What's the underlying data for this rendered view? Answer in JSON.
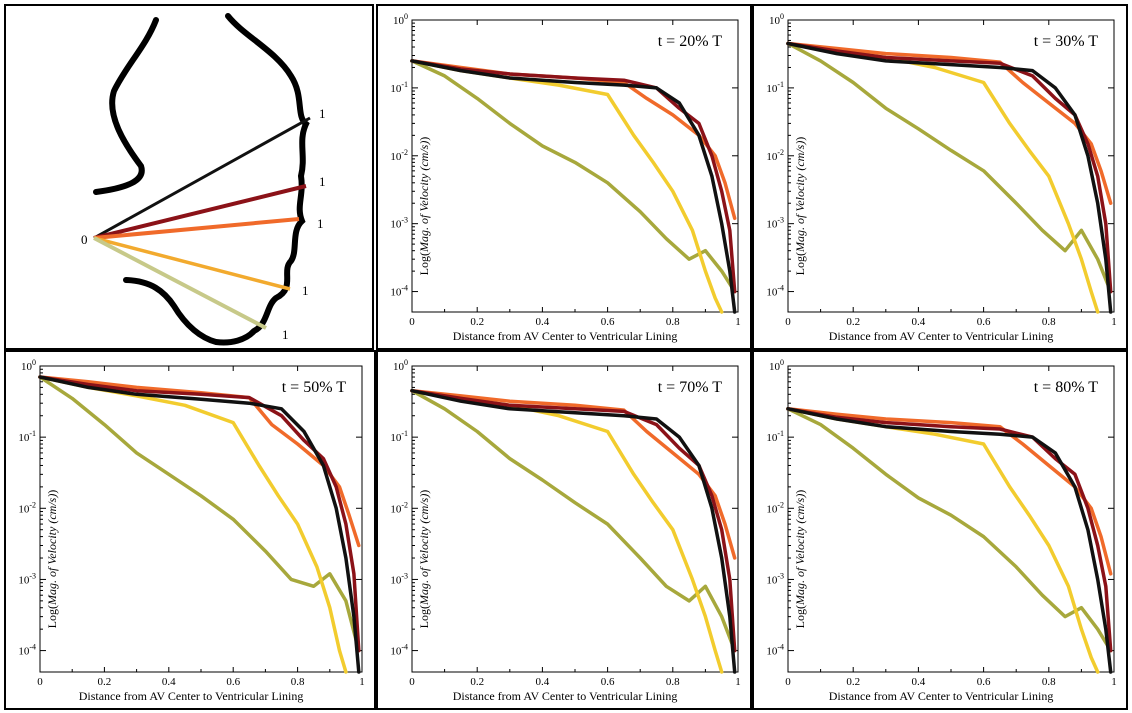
{
  "colors": {
    "black": "#111111",
    "darkred": "#8b1218",
    "orange": "#f06a2a",
    "gold": "#f2cc2e",
    "olive": "#a7a83c",
    "olive_light": "#c7c989"
  },
  "diagram": {
    "origin_label": "0",
    "end_labels": [
      "1",
      "1",
      "1",
      "1",
      "1"
    ]
  },
  "chart_data": [
    {
      "type": "line",
      "title": "t = 20% T",
      "xlabel": "Distance from AV Center to Ventricular Lining",
      "ylabel_prefix": "Log(",
      "ylabel_italic": "Mag. of Velocity (cm/s)",
      "ylabel_suffix": ")",
      "yscale": "log",
      "xlim": [
        0,
        1
      ],
      "ylim": [
        5e-05,
        1
      ],
      "x_ticks": [
        "0",
        "0.2",
        "0.4",
        "0.6",
        "0.8",
        "1"
      ],
      "y_ticks": [
        "-4",
        "-3",
        "-2",
        "-1",
        "0"
      ],
      "y_tick_base": "10",
      "series": [
        {
          "name": "black",
          "color": "#111111",
          "x": [
            0,
            0.15,
            0.3,
            0.5,
            0.65,
            0.75,
            0.82,
            0.88,
            0.92,
            0.95,
            0.975,
            0.99
          ],
          "y": [
            0.25,
            0.18,
            0.14,
            0.12,
            0.11,
            0.1,
            0.06,
            0.02,
            0.005,
            0.001,
            0.0002,
            5e-05
          ]
        },
        {
          "name": "darkred",
          "color": "#8b1218",
          "x": [
            0,
            0.15,
            0.3,
            0.5,
            0.65,
            0.75,
            0.82,
            0.88,
            0.92,
            0.95,
            0.975,
            0.99
          ],
          "y": [
            0.25,
            0.19,
            0.16,
            0.14,
            0.13,
            0.1,
            0.05,
            0.03,
            0.01,
            0.003,
            0.0008,
            0.0001
          ]
        },
        {
          "name": "orange",
          "color": "#f06a2a",
          "x": [
            0,
            0.15,
            0.3,
            0.5,
            0.65,
            0.72,
            0.8,
            0.88,
            0.93,
            0.96,
            0.99
          ],
          "y": [
            0.25,
            0.2,
            0.16,
            0.14,
            0.12,
            0.07,
            0.04,
            0.02,
            0.01,
            0.004,
            0.0012
          ]
        },
        {
          "name": "gold",
          "color": "#f2cc2e",
          "x": [
            0,
            0.15,
            0.3,
            0.45,
            0.6,
            0.68,
            0.74,
            0.8,
            0.86,
            0.9,
            0.93,
            0.95
          ],
          "y": [
            0.25,
            0.18,
            0.14,
            0.11,
            0.08,
            0.02,
            0.008,
            0.003,
            0.0008,
            0.0002,
            8e-05,
            5e-05
          ]
        },
        {
          "name": "olive",
          "color": "#a7a83c",
          "x": [
            0,
            0.1,
            0.2,
            0.3,
            0.4,
            0.5,
            0.6,
            0.7,
            0.78,
            0.85,
            0.9,
            0.95,
            0.99
          ],
          "y": [
            0.25,
            0.15,
            0.07,
            0.03,
            0.014,
            0.008,
            0.004,
            0.0015,
            0.0006,
            0.0003,
            0.0004,
            0.0002,
            0.0001
          ]
        }
      ]
    },
    {
      "type": "line",
      "title": "t = 30% T",
      "xlabel": "Distance from AV Center to Ventricular Lining",
      "ylabel_prefix": "Log(",
      "ylabel_italic": "Mag. of Velocity (cm/s)",
      "ylabel_suffix": ")",
      "yscale": "log",
      "xlim": [
        0,
        1
      ],
      "ylim": [
        5e-05,
        1
      ],
      "x_ticks": [
        "0",
        "0.2",
        "0.4",
        "0.6",
        "0.8",
        "1"
      ],
      "y_ticks": [
        "-4",
        "-3",
        "-2",
        "-1",
        "0"
      ],
      "y_tick_base": "10",
      "series": [
        {
          "name": "black",
          "color": "#111111",
          "x": [
            0,
            0.15,
            0.3,
            0.5,
            0.65,
            0.75,
            0.82,
            0.88,
            0.92,
            0.95,
            0.975,
            0.99
          ],
          "y": [
            0.45,
            0.32,
            0.25,
            0.22,
            0.2,
            0.18,
            0.1,
            0.04,
            0.01,
            0.002,
            0.0003,
            5e-05
          ]
        },
        {
          "name": "darkred",
          "color": "#8b1218",
          "x": [
            0,
            0.15,
            0.3,
            0.5,
            0.65,
            0.75,
            0.82,
            0.88,
            0.92,
            0.95,
            0.975,
            0.99
          ],
          "y": [
            0.45,
            0.35,
            0.28,
            0.25,
            0.23,
            0.15,
            0.07,
            0.04,
            0.015,
            0.005,
            0.001,
            0.0001
          ]
        },
        {
          "name": "orange",
          "color": "#f06a2a",
          "x": [
            0,
            0.15,
            0.3,
            0.5,
            0.65,
            0.72,
            0.8,
            0.88,
            0.93,
            0.96,
            0.99
          ],
          "y": [
            0.45,
            0.38,
            0.32,
            0.28,
            0.24,
            0.12,
            0.06,
            0.03,
            0.015,
            0.006,
            0.002
          ]
        },
        {
          "name": "gold",
          "color": "#f2cc2e",
          "x": [
            0,
            0.15,
            0.3,
            0.45,
            0.6,
            0.68,
            0.74,
            0.8,
            0.86,
            0.9,
            0.93,
            0.95
          ],
          "y": [
            0.45,
            0.35,
            0.28,
            0.2,
            0.12,
            0.03,
            0.012,
            0.005,
            0.001,
            0.0003,
            0.0001,
            5e-05
          ]
        },
        {
          "name": "olive",
          "color": "#a7a83c",
          "x": [
            0,
            0.1,
            0.2,
            0.3,
            0.4,
            0.5,
            0.6,
            0.7,
            0.78,
            0.85,
            0.9,
            0.95,
            0.99
          ],
          "y": [
            0.45,
            0.25,
            0.12,
            0.05,
            0.025,
            0.012,
            0.006,
            0.002,
            0.0008,
            0.0004,
            0.0008,
            0.0003,
            0.0001
          ]
        }
      ]
    },
    {
      "type": "line",
      "title": "t = 50% T",
      "xlabel": "Distance from AV Center to Ventricular Lining",
      "ylabel_prefix": "Log(",
      "ylabel_italic": "Mag. of Velocity (cm/s)",
      "ylabel_suffix": ")",
      "yscale": "log",
      "xlim": [
        0,
        1
      ],
      "ylim": [
        5e-05,
        1
      ],
      "x_ticks": [
        "0",
        "0.2",
        "0.4",
        "0.6",
        "0.8",
        "1"
      ],
      "y_ticks": [
        "-4",
        "-3",
        "-2",
        "-1",
        "0"
      ],
      "y_tick_base": "10",
      "series": [
        {
          "name": "black",
          "color": "#111111",
          "x": [
            0,
            0.15,
            0.3,
            0.5,
            0.65,
            0.75,
            0.82,
            0.88,
            0.92,
            0.95,
            0.975,
            0.99
          ],
          "y": [
            0.7,
            0.5,
            0.4,
            0.34,
            0.3,
            0.25,
            0.12,
            0.04,
            0.01,
            0.002,
            0.0003,
            5e-05
          ]
        },
        {
          "name": "darkred",
          "color": "#8b1218",
          "x": [
            0,
            0.15,
            0.3,
            0.5,
            0.65,
            0.75,
            0.82,
            0.88,
            0.92,
            0.95,
            0.975,
            0.99
          ],
          "y": [
            0.7,
            0.55,
            0.45,
            0.4,
            0.36,
            0.2,
            0.09,
            0.05,
            0.02,
            0.006,
            0.0012,
            0.0001
          ]
        },
        {
          "name": "orange",
          "color": "#f06a2a",
          "x": [
            0,
            0.15,
            0.3,
            0.5,
            0.65,
            0.72,
            0.8,
            0.88,
            0.93,
            0.96,
            0.99
          ],
          "y": [
            0.7,
            0.6,
            0.5,
            0.42,
            0.36,
            0.15,
            0.08,
            0.04,
            0.02,
            0.008,
            0.003
          ]
        },
        {
          "name": "gold",
          "color": "#f2cc2e",
          "x": [
            0,
            0.15,
            0.3,
            0.45,
            0.6,
            0.68,
            0.74,
            0.8,
            0.86,
            0.9,
            0.93,
            0.95
          ],
          "y": [
            0.7,
            0.5,
            0.38,
            0.28,
            0.16,
            0.04,
            0.015,
            0.006,
            0.0015,
            0.0004,
            0.0001,
            5e-05
          ]
        },
        {
          "name": "olive",
          "color": "#a7a83c",
          "x": [
            0,
            0.1,
            0.2,
            0.3,
            0.4,
            0.5,
            0.6,
            0.7,
            0.78,
            0.85,
            0.9,
            0.95,
            0.99
          ],
          "y": [
            0.7,
            0.35,
            0.15,
            0.06,
            0.03,
            0.015,
            0.007,
            0.0025,
            0.001,
            0.0008,
            0.0012,
            0.0005,
            0.0001
          ]
        }
      ]
    },
    {
      "type": "line",
      "title": "t = 70% T",
      "xlabel": "Distance from AV Center to Ventricular Lining",
      "ylabel_prefix": "Log(",
      "ylabel_italic": "Mag. of Velocity (cm/s)",
      "ylabel_suffix": ")",
      "yscale": "log",
      "xlim": [
        0,
        1
      ],
      "ylim": [
        5e-05,
        1
      ],
      "x_ticks": [
        "0",
        "0.2",
        "0.4",
        "0.6",
        "0.8",
        "1"
      ],
      "y_ticks": [
        "-4",
        "-3",
        "-2",
        "-1",
        "0"
      ],
      "y_tick_base": "10",
      "series": [
        {
          "name": "black",
          "color": "#111111",
          "x": [
            0,
            0.15,
            0.3,
            0.5,
            0.65,
            0.75,
            0.82,
            0.88,
            0.92,
            0.95,
            0.975,
            0.99
          ],
          "y": [
            0.45,
            0.32,
            0.25,
            0.22,
            0.2,
            0.18,
            0.1,
            0.04,
            0.01,
            0.002,
            0.0003,
            5e-05
          ]
        },
        {
          "name": "darkred",
          "color": "#8b1218",
          "x": [
            0,
            0.15,
            0.3,
            0.5,
            0.65,
            0.75,
            0.82,
            0.88,
            0.92,
            0.95,
            0.975,
            0.99
          ],
          "y": [
            0.45,
            0.35,
            0.28,
            0.25,
            0.23,
            0.15,
            0.07,
            0.04,
            0.015,
            0.005,
            0.001,
            0.0001
          ]
        },
        {
          "name": "orange",
          "color": "#f06a2a",
          "x": [
            0,
            0.15,
            0.3,
            0.5,
            0.65,
            0.72,
            0.8,
            0.88,
            0.93,
            0.96,
            0.99
          ],
          "y": [
            0.45,
            0.38,
            0.32,
            0.28,
            0.24,
            0.12,
            0.06,
            0.03,
            0.015,
            0.006,
            0.002
          ]
        },
        {
          "name": "gold",
          "color": "#f2cc2e",
          "x": [
            0,
            0.15,
            0.3,
            0.45,
            0.6,
            0.68,
            0.74,
            0.8,
            0.86,
            0.9,
            0.93,
            0.95
          ],
          "y": [
            0.45,
            0.35,
            0.28,
            0.2,
            0.12,
            0.03,
            0.012,
            0.005,
            0.001,
            0.0003,
            0.0001,
            5e-05
          ]
        },
        {
          "name": "olive",
          "color": "#a7a83c",
          "x": [
            0,
            0.1,
            0.2,
            0.3,
            0.4,
            0.5,
            0.6,
            0.7,
            0.78,
            0.85,
            0.9,
            0.95,
            0.99
          ],
          "y": [
            0.45,
            0.25,
            0.12,
            0.05,
            0.025,
            0.012,
            0.006,
            0.002,
            0.0008,
            0.0005,
            0.0008,
            0.0003,
            0.0001
          ]
        }
      ]
    },
    {
      "type": "line",
      "title": "t = 80% T",
      "xlabel": "Distance from AV Center to Ventricular Lining",
      "ylabel_prefix": "Log(",
      "ylabel_italic": "Mag. of Velocity (cm/s)",
      "ylabel_suffix": ")",
      "yscale": "log",
      "xlim": [
        0,
        1
      ],
      "ylim": [
        5e-05,
        1
      ],
      "x_ticks": [
        "0",
        "0.2",
        "0.4",
        "0.6",
        "0.8",
        "1"
      ],
      "y_ticks": [
        "-4",
        "-3",
        "-2",
        "-1",
        "0"
      ],
      "y_tick_base": "10",
      "series": [
        {
          "name": "black",
          "color": "#111111",
          "x": [
            0,
            0.15,
            0.3,
            0.5,
            0.65,
            0.75,
            0.82,
            0.88,
            0.92,
            0.95,
            0.975,
            0.99
          ],
          "y": [
            0.25,
            0.18,
            0.14,
            0.12,
            0.11,
            0.1,
            0.06,
            0.02,
            0.005,
            0.001,
            0.0002,
            5e-05
          ]
        },
        {
          "name": "darkred",
          "color": "#8b1218",
          "x": [
            0,
            0.15,
            0.3,
            0.5,
            0.65,
            0.75,
            0.82,
            0.88,
            0.92,
            0.95,
            0.975,
            0.99
          ],
          "y": [
            0.25,
            0.19,
            0.16,
            0.14,
            0.13,
            0.1,
            0.05,
            0.03,
            0.01,
            0.003,
            0.0008,
            0.0001
          ]
        },
        {
          "name": "orange",
          "color": "#f06a2a",
          "x": [
            0,
            0.15,
            0.3,
            0.5,
            0.65,
            0.72,
            0.8,
            0.88,
            0.93,
            0.96,
            0.99
          ],
          "y": [
            0.25,
            0.21,
            0.18,
            0.16,
            0.14,
            0.08,
            0.04,
            0.02,
            0.01,
            0.004,
            0.0012
          ]
        },
        {
          "name": "gold",
          "color": "#f2cc2e",
          "x": [
            0,
            0.15,
            0.3,
            0.45,
            0.6,
            0.68,
            0.74,
            0.8,
            0.86,
            0.9,
            0.93,
            0.95
          ],
          "y": [
            0.25,
            0.18,
            0.14,
            0.11,
            0.08,
            0.02,
            0.008,
            0.003,
            0.0008,
            0.0002,
            8e-05,
            5e-05
          ]
        },
        {
          "name": "olive",
          "color": "#a7a83c",
          "x": [
            0,
            0.1,
            0.2,
            0.3,
            0.4,
            0.5,
            0.6,
            0.7,
            0.78,
            0.85,
            0.9,
            0.95,
            0.99
          ],
          "y": [
            0.25,
            0.15,
            0.07,
            0.03,
            0.014,
            0.008,
            0.004,
            0.0015,
            0.0006,
            0.0003,
            0.0004,
            0.0002,
            0.0001
          ]
        }
      ]
    }
  ]
}
